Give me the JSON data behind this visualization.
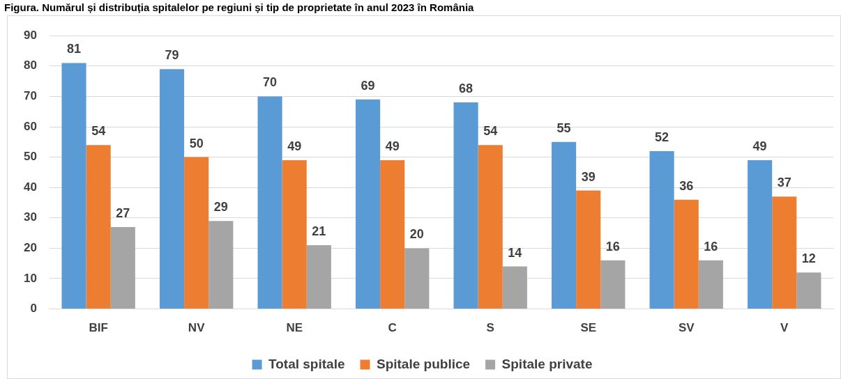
{
  "chart_data": {
    "type": "bar",
    "title": "Figura. Numărul și distribuția spitalelor pe regiuni și tip de proprietate în anul 2023 în România",
    "categories": [
      "BIF",
      "NV",
      "NE",
      "C",
      "S",
      "SE",
      "SV",
      "V"
    ],
    "series": [
      {
        "name": "Total spitale",
        "color": "#5b9bd5",
        "values": [
          81,
          79,
          70,
          69,
          68,
          55,
          52,
          49
        ]
      },
      {
        "name": "Spitale publice",
        "color": "#ed7d31",
        "values": [
          54,
          50,
          49,
          49,
          54,
          39,
          36,
          37
        ]
      },
      {
        "name": "Spitale private",
        "color": "#a5a5a5",
        "values": [
          27,
          29,
          21,
          20,
          14,
          16,
          16,
          12
        ]
      }
    ],
    "ylim": [
      0,
      90
    ],
    "yticks": [
      0,
      10,
      20,
      30,
      40,
      50,
      60,
      70,
      80,
      90
    ],
    "grid": "y",
    "legend": "bottom",
    "data_labels": true
  }
}
